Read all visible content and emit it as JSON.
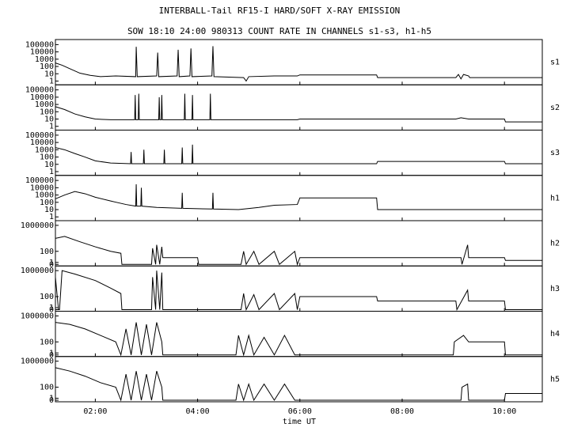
{
  "chart_data": [
    {
      "type": "line",
      "title": "INTERBALL-Tail RF15-I HARD/SOFT X-RAY EMISSION",
      "subtitle": "SOW 18:10 24:00 980313  COUNT RATE IN CHANNELS s1-s3, h1-h5",
      "name": "s1",
      "color": "#000000",
      "yscale": "log",
      "xlim": [
        1.22,
        10.74
      ],
      "ylim": [
        0.5,
        300000
      ],
      "yticks": [
        1,
        10,
        100,
        1000,
        10000,
        100000
      ],
      "x": [
        1.22,
        1.35,
        1.5,
        1.7,
        1.9,
        2.1,
        2.4,
        2.79,
        2.8,
        2.82,
        3.2,
        3.22,
        3.24,
        3.6,
        3.62,
        3.64,
        3.85,
        3.87,
        3.89,
        4.28,
        4.3,
        4.32,
        4.9,
        4.95,
        5.0,
        5.5,
        5.95,
        6.0,
        7.5,
        7.52,
        9.05,
        9.1,
        9.15,
        9.2,
        9.3,
        9.32,
        10.74
      ],
      "values": [
        300,
        150,
        50,
        12,
        6,
        4,
        5,
        4,
        50000,
        4,
        5,
        8000,
        4,
        5,
        20000,
        4,
        5,
        30000,
        4,
        5,
        60000,
        4,
        3,
        1,
        4,
        5,
        5,
        7,
        7,
        3,
        3,
        8,
        2,
        8,
        5,
        3,
        3
      ]
    },
    {
      "type": "line",
      "name": "s2",
      "color": "#000000",
      "yscale": "log",
      "xlim": [
        1.22,
        10.74
      ],
      "ylim": [
        0.5,
        300000
      ],
      "yticks": [
        1,
        10,
        100,
        1000,
        10000,
        100000
      ],
      "x": [
        1.22,
        1.4,
        1.6,
        1.8,
        2.0,
        2.3,
        2.77,
        2.78,
        2.79,
        2.84,
        2.85,
        2.86,
        3.24,
        3.25,
        3.26,
        3.29,
        3.3,
        3.31,
        3.74,
        3.75,
        3.76,
        3.89,
        3.9,
        3.91,
        4.24,
        4.25,
        4.26,
        5.0,
        5.95,
        6.0,
        9.05,
        9.15,
        9.3,
        9.32,
        10.0,
        10.02,
        10.74
      ],
      "values": [
        500,
        200,
        50,
        20,
        10,
        8,
        8,
        20000,
        8,
        8,
        30000,
        8,
        8,
        10000,
        8,
        8,
        20000,
        8,
        8,
        30000,
        8,
        8,
        20000,
        8,
        8,
        30000,
        8,
        8,
        8,
        10,
        10,
        15,
        10,
        10,
        10,
        4,
        4
      ]
    },
    {
      "type": "line",
      "name": "s3",
      "color": "#000000",
      "yscale": "log",
      "xlim": [
        1.22,
        10.74
      ],
      "ylim": [
        0.5,
        300000
      ],
      "yticks": [
        1,
        10,
        100,
        1000,
        10000,
        100000
      ],
      "x": [
        1.22,
        1.4,
        1.6,
        1.8,
        2.0,
        2.3,
        2.69,
        2.7,
        2.71,
        2.94,
        2.95,
        2.96,
        3.34,
        3.35,
        3.36,
        3.69,
        3.7,
        3.71,
        3.89,
        3.9,
        3.91,
        4.5,
        5.95,
        6.0,
        7.5,
        7.52,
        9.05,
        9.3,
        10.0,
        10.02,
        10.74
      ],
      "values": [
        2000,
        1000,
        300,
        100,
        30,
        15,
        12,
        500,
        12,
        12,
        1000,
        12,
        12,
        1000,
        12,
        12,
        2000,
        12,
        12,
        5000,
        12,
        12,
        12,
        12,
        12,
        25,
        25,
        25,
        25,
        12,
        12
      ]
    },
    {
      "type": "line",
      "name": "h1",
      "color": "#000000",
      "yscale": "log",
      "xlim": [
        1.22,
        10.74
      ],
      "ylim": [
        0.5,
        300000
      ],
      "yticks": [
        1,
        10,
        100,
        1000,
        10000,
        100000
      ],
      "x": [
        1.22,
        1.4,
        1.6,
        1.8,
        2.0,
        2.3,
        2.6,
        2.79,
        2.8,
        2.81,
        2.89,
        2.9,
        2.91,
        3.2,
        3.69,
        3.7,
        3.71,
        4.29,
        4.3,
        4.31,
        4.8,
        5.2,
        5.5,
        5.95,
        6.0,
        7.5,
        7.52,
        9.05,
        9.3,
        9.32,
        10.74
      ],
      "values": [
        300,
        1000,
        3000,
        1500,
        500,
        150,
        50,
        30,
        30000,
        30,
        30,
        10000,
        30,
        20,
        15,
        2000,
        15,
        12,
        2000,
        12,
        10,
        20,
        40,
        50,
        400,
        400,
        10,
        10,
        10,
        10,
        10
      ]
    },
    {
      "type": "line",
      "name": "h2",
      "color": "#000000",
      "yscale": "log1p",
      "xlim": [
        1.22,
        10.74
      ],
      "ylim": [
        0,
        3000000
      ],
      "yticks": [
        0,
        1,
        100,
        1000000
      ],
      "x": [
        1.22,
        1.4,
        1.7,
        2.0,
        2.3,
        2.5,
        2.52,
        3.1,
        3.12,
        3.18,
        3.2,
        3.26,
        3.3,
        3.32,
        4.0,
        4.02,
        4.85,
        4.9,
        4.95,
        5.1,
        5.2,
        5.5,
        5.6,
        5.9,
        5.95,
        6.0,
        9.15,
        9.17,
        9.28,
        9.3,
        10.0,
        10.02,
        10.74
      ],
      "values": [
        10000,
        20000,
        3000,
        500,
        100,
        50,
        0,
        0,
        300,
        0,
        1000,
        0,
        500,
        10,
        10,
        0,
        0,
        100,
        0,
        100,
        0,
        100,
        0,
        100,
        0,
        10,
        10,
        0,
        1000,
        10,
        10,
        3,
        3
      ]
    },
    {
      "type": "line",
      "name": "h3",
      "color": "#000000",
      "yscale": "log1p",
      "xlim": [
        1.22,
        10.74
      ],
      "ylim": [
        0,
        3000000
      ],
      "yticks": [
        0,
        1,
        100,
        1000000
      ],
      "x": [
        1.22,
        1.28,
        1.3,
        1.35,
        1.6,
        2.0,
        2.3,
        2.5,
        2.52,
        3.1,
        3.12,
        3.18,
        3.2,
        3.26,
        3.3,
        3.32,
        4.85,
        4.9,
        4.95,
        5.1,
        5.2,
        5.5,
        5.6,
        5.9,
        5.95,
        6.0,
        7.5,
        7.52,
        9.05,
        9.07,
        9.28,
        9.3,
        10.0,
        10.02,
        10.74
      ],
      "values": [
        100000,
        0,
        0,
        1000000,
        300000,
        30000,
        2000,
        300,
        0,
        0,
        100000,
        0,
        1000000,
        0,
        500000,
        0,
        0,
        300,
        0,
        200,
        0,
        300,
        0,
        300,
        0,
        100,
        100,
        20,
        20,
        0,
        1000,
        20,
        20,
        0,
        0
      ]
    },
    {
      "type": "line",
      "name": "h4",
      "color": "#000000",
      "yscale": "log1p",
      "xlim": [
        1.22,
        10.74
      ],
      "ylim": [
        0,
        3000000
      ],
      "yticks": [
        0,
        1,
        100,
        1000000
      ],
      "x": [
        1.22,
        1.5,
        1.8,
        2.1,
        2.4,
        2.5,
        2.6,
        2.7,
        2.8,
        2.9,
        3.0,
        3.1,
        3.2,
        3.3,
        3.32,
        4.75,
        4.8,
        4.9,
        5.0,
        5.1,
        5.3,
        5.5,
        5.7,
        5.9,
        5.95,
        9.0,
        9.02,
        9.2,
        9.3,
        10.0,
        10.02,
        10.74
      ],
      "values": [
        100000,
        50000,
        10000,
        1000,
        100,
        0,
        10000,
        0,
        100000,
        0,
        50000,
        0,
        100000,
        100,
        0,
        0,
        1000,
        0,
        1000,
        0,
        500,
        0,
        1000,
        0,
        0,
        0,
        100,
        1000,
        100,
        100,
        0,
        0
      ]
    },
    {
      "type": "line",
      "name": "h5",
      "color": "#000000",
      "yscale": "log1p",
      "xlim": [
        1.22,
        10.74
      ],
      "ylim": [
        0,
        3000000
      ],
      "yticks": [
        0,
        1,
        100,
        1000000
      ],
      "x_label": "time UT",
      "xticks": [
        {
          "value": 2,
          "label": "02:00"
        },
        {
          "value": 4,
          "label": "04:00"
        },
        {
          "value": 6,
          "label": "06:00"
        },
        {
          "value": 8,
          "label": "08:00"
        },
        {
          "value": 10,
          "label": "10:00"
        }
      ],
      "x": [
        1.22,
        1.5,
        1.8,
        2.1,
        2.4,
        2.5,
        2.6,
        2.7,
        2.8,
        2.9,
        3.0,
        3.1,
        3.2,
        3.3,
        3.32,
        4.75,
        4.8,
        4.9,
        5.0,
        5.1,
        5.3,
        5.5,
        5.7,
        5.9,
        5.95,
        9.15,
        9.17,
        9.28,
        9.3,
        10.0,
        10.02,
        10.74
      ],
      "values": [
        100000,
        30000,
        5000,
        500,
        100,
        0,
        10000,
        0,
        30000,
        0,
        10000,
        0,
        30000,
        100,
        0,
        0,
        300,
        0,
        300,
        0,
        300,
        0,
        300,
        0,
        0,
        0,
        100,
        300,
        0,
        0,
        10,
        10
      ]
    }
  ]
}
